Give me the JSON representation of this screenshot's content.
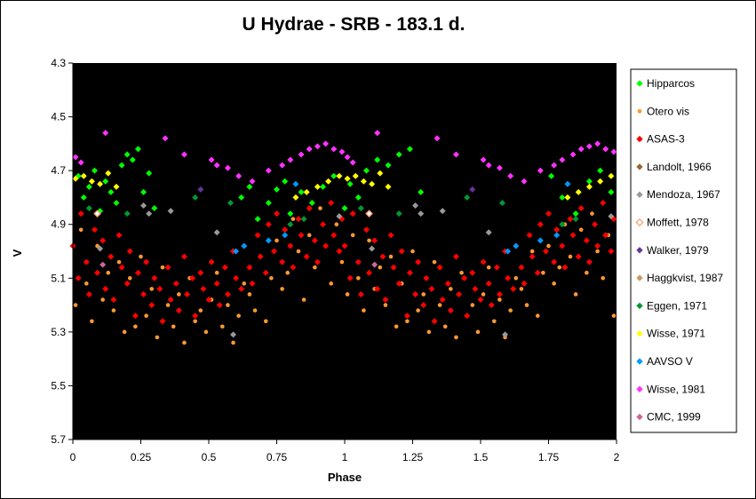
{
  "chart_data": {
    "type": "scatter",
    "title": "U Hydrae - SRB - 183.1 d.",
    "xlabel": "Phase",
    "ylabel": "V",
    "xlim": [
      0,
      2
    ],
    "ylim": [
      4.3,
      5.7
    ],
    "y_inverted": true,
    "background": "#000000",
    "grid": false,
    "legend_position": "right",
    "x_ticks": [
      "0",
      "0.25",
      "0.5",
      "0.75",
      "1",
      "1.25",
      "1.5",
      "1.75",
      "2"
    ],
    "y_ticks": [
      "4.3",
      "4.5",
      "4.7",
      "4.9",
      "5.1",
      "5.3",
      "5.5",
      "5.7"
    ],
    "series": [
      {
        "name": "Hipparcos",
        "color": "#00ff00",
        "marker": "diamond",
        "x": [
          0.02,
          0.04,
          0.06,
          0.08,
          0.1,
          0.12,
          0.14,
          0.16,
          0.18,
          0.2,
          0.22,
          0.24,
          0.26,
          0.28,
          0.3,
          0.62,
          0.65,
          0.68,
          0.72,
          0.75,
          0.78,
          0.8,
          0.84,
          0.88,
          0.92,
          0.96,
          1.0,
          1.02,
          1.05,
          1.08,
          1.12,
          1.16,
          1.2,
          1.24,
          1.28,
          1.76,
          1.8,
          1.85,
          1.9,
          1.94,
          1.98
        ],
        "y": [
          4.72,
          4.8,
          4.76,
          4.7,
          4.85,
          4.74,
          4.78,
          4.82,
          4.68,
          4.64,
          4.66,
          4.62,
          4.78,
          4.71,
          4.84,
          4.8,
          4.76,
          4.88,
          4.82,
          4.77,
          4.74,
          4.86,
          4.78,
          4.82,
          4.76,
          4.72,
          4.84,
          4.75,
          4.8,
          4.7,
          4.66,
          4.68,
          4.64,
          4.62,
          4.78,
          4.72,
          4.8,
          4.86,
          4.74,
          4.7,
          4.78
        ]
      },
      {
        "name": "Otero vis",
        "color": "#ff9933",
        "marker": "circle",
        "x": [
          0.01,
          0.03,
          0.05,
          0.07,
          0.09,
          0.11,
          0.13,
          0.15,
          0.17,
          0.19,
          0.21,
          0.23,
          0.25,
          0.27,
          0.29,
          0.31,
          0.33,
          0.35,
          0.37,
          0.39,
          0.41,
          0.43,
          0.45,
          0.47,
          0.49,
          0.51,
          0.53,
          0.55,
          0.57,
          0.59,
          0.61,
          0.63,
          0.65,
          0.67,
          0.69,
          0.71,
          0.73,
          0.75,
          0.77,
          0.79,
          0.81,
          0.83,
          0.85,
          0.87,
          0.89,
          0.91,
          0.93,
          0.95,
          0.97,
          0.99,
          1.01,
          1.03,
          1.05,
          1.07,
          1.09,
          1.11,
          1.13,
          1.15,
          1.17,
          1.19,
          1.21,
          1.23,
          1.25,
          1.27,
          1.29,
          1.31,
          1.33,
          1.35,
          1.37,
          1.39,
          1.41,
          1.43,
          1.45,
          1.47,
          1.49,
          1.51,
          1.53,
          1.55,
          1.57,
          1.59,
          1.61,
          1.63,
          1.65,
          1.67,
          1.69,
          1.71,
          1.73,
          1.75,
          1.77,
          1.79,
          1.81,
          1.83,
          1.85,
          1.87,
          1.89,
          1.91,
          1.93,
          1.95,
          1.97,
          1.99
        ],
        "y": [
          5.2,
          4.92,
          5.12,
          5.26,
          4.98,
          5.18,
          5.08,
          5.22,
          5.04,
          5.3,
          5.1,
          5.28,
          5.02,
          5.24,
          5.14,
          5.32,
          5.06,
          5.2,
          5.28,
          5.16,
          5.34,
          5.1,
          5.26,
          5.22,
          5.3,
          5.18,
          5.08,
          5.28,
          5.2,
          5.34,
          5.24,
          5.12,
          5.16,
          5.22,
          5.02,
          5.26,
          5.1,
          4.96,
          5.14,
          5.08,
          4.88,
          5.0,
          5.18,
          4.94,
          5.06,
          4.84,
          4.98,
          5.12,
          4.9,
          5.04,
          5.16,
          4.94,
          5.1,
          5.22,
          4.96,
          5.14,
          5.06,
          5.2,
          5.02,
          5.28,
          5.12,
          5.26,
          5.0,
          5.22,
          5.16,
          5.3,
          5.04,
          5.2,
          5.28,
          5.14,
          5.32,
          5.08,
          5.24,
          5.2,
          5.3,
          5.16,
          5.06,
          5.26,
          5.18,
          5.32,
          5.22,
          5.1,
          5.14,
          5.2,
          5.0,
          5.24,
          5.08,
          4.98,
          5.12,
          5.06,
          4.9,
          5.02,
          5.16,
          4.92,
          5.08,
          4.86,
          5.0,
          5.1,
          4.94,
          5.24
        ]
      },
      {
        "name": "ASAS-3",
        "color": "#ff0000",
        "marker": "diamond",
        "x": [
          0.0,
          0.02,
          0.03,
          0.05,
          0.06,
          0.08,
          0.09,
          0.11,
          0.12,
          0.14,
          0.15,
          0.17,
          0.18,
          0.2,
          0.21,
          0.23,
          0.24,
          0.26,
          0.27,
          0.29,
          0.3,
          0.32,
          0.33,
          0.35,
          0.36,
          0.38,
          0.39,
          0.41,
          0.42,
          0.44,
          0.45,
          0.47,
          0.48,
          0.5,
          0.51,
          0.53,
          0.54,
          0.56,
          0.57,
          0.59,
          0.6,
          0.62,
          0.63,
          0.65,
          0.66,
          0.68,
          0.69,
          0.71,
          0.72,
          0.74,
          0.75,
          0.77,
          0.78,
          0.8,
          0.81,
          0.83,
          0.84,
          0.86,
          0.87,
          0.89,
          0.9,
          0.92,
          0.93,
          0.95,
          0.96,
          0.98,
          0.99,
          1.0,
          1.02,
          1.03,
          1.05,
          1.06,
          1.08,
          1.09,
          1.11,
          1.12,
          1.14,
          1.15,
          1.17,
          1.18,
          1.2,
          1.21,
          1.23,
          1.24,
          1.26,
          1.27,
          1.29,
          1.3,
          1.32,
          1.33,
          1.35,
          1.36,
          1.38,
          1.39,
          1.41,
          1.42,
          1.44,
          1.45,
          1.47,
          1.48,
          1.5,
          1.51,
          1.53,
          1.54,
          1.56,
          1.57,
          1.59,
          1.6,
          1.62,
          1.63,
          1.65,
          1.66,
          1.68,
          1.69,
          1.71,
          1.72,
          1.74,
          1.75,
          1.77,
          1.78,
          1.8,
          1.81,
          1.83,
          1.84,
          1.86,
          1.87,
          1.89,
          1.9,
          1.92,
          1.93,
          1.95,
          1.96,
          1.98,
          1.99
        ],
        "y": [
          4.98,
          5.1,
          4.86,
          5.04,
          5.16,
          4.92,
          5.08,
          4.96,
          5.14,
          5.02,
          5.18,
          4.94,
          5.06,
          5.12,
          5.0,
          5.24,
          5.08,
          5.16,
          5.04,
          5.2,
          5.1,
          5.14,
          5.26,
          5.06,
          5.18,
          5.12,
          5.22,
          5.02,
          5.16,
          5.1,
          5.24,
          5.08,
          5.14,
          5.18,
          5.04,
          5.12,
          5.2,
          5.06,
          5.16,
          5.0,
          5.1,
          5.14,
          4.98,
          5.06,
          5.12,
          4.94,
          5.02,
          5.08,
          4.9,
          5.0,
          4.86,
          5.04,
          4.92,
          4.98,
          5.06,
          4.88,
          4.94,
          5.02,
          4.84,
          4.96,
          5.04,
          4.9,
          4.98,
          4.82,
          4.94,
          5.0,
          4.88,
          4.98,
          5.1,
          4.86,
          5.04,
          5.16,
          4.92,
          5.08,
          4.96,
          5.14,
          5.02,
          5.18,
          4.94,
          5.06,
          5.12,
          5.0,
          5.24,
          5.08,
          5.16,
          5.04,
          5.2,
          5.1,
          5.14,
          5.26,
          5.06,
          5.18,
          5.12,
          5.22,
          5.02,
          5.16,
          5.1,
          5.24,
          5.08,
          5.14,
          5.18,
          5.04,
          5.12,
          5.2,
          5.06,
          5.16,
          5.0,
          5.1,
          5.14,
          4.98,
          5.06,
          5.12,
          4.94,
          5.02,
          5.08,
          4.9,
          5.0,
          4.86,
          5.04,
          4.92,
          4.98,
          5.06,
          4.88,
          4.94,
          5.02,
          4.84,
          4.96,
          5.04,
          4.9,
          4.98,
          4.82,
          4.94,
          5.0,
          4.88
        ]
      },
      {
        "name": "Landolt, 1966",
        "color": "#996633",
        "marker": "diamond",
        "x": [],
        "y": []
      },
      {
        "name": "Mendoza, 1967",
        "color": "#999999",
        "marker": "diamond",
        "x": [
          0.1,
          0.26,
          0.28,
          0.36,
          0.53,
          0.59,
          0.98,
          1.1,
          1.26,
          1.28,
          1.36,
          1.53,
          1.59,
          1.98
        ],
        "y": [
          4.99,
          4.83,
          4.86,
          4.85,
          4.93,
          5.31,
          4.87,
          4.99,
          4.83,
          4.86,
          4.85,
          4.93,
          5.31,
          4.87
        ]
      },
      {
        "name": "Moffett, 1978",
        "color": "#ff9966",
        "marker": "diamond-open",
        "x": [
          0.09,
          1.09
        ],
        "y": [
          4.86,
          4.86
        ]
      },
      {
        "name": "Walker,  1979",
        "color": "#663399",
        "marker": "diamond",
        "x": [
          0.47,
          1.47
        ],
        "y": [
          4.77,
          4.77
        ]
      },
      {
        "name": "Haggkvist, 1987",
        "color": "#cc9966",
        "marker": "diamond",
        "x": [],
        "y": []
      },
      {
        "name": "Eggen, 1971",
        "color": "#009933",
        "marker": "diamond",
        "x": [
          0.06,
          0.2,
          0.45,
          0.58,
          0.8,
          0.85,
          1.06,
          1.2,
          1.45,
          1.58,
          1.8,
          1.85
        ],
        "y": [
          4.84,
          4.86,
          4.8,
          4.82,
          4.9,
          4.88,
          4.84,
          4.86,
          4.8,
          4.82,
          4.9,
          4.88
        ]
      },
      {
        "name": "Wisse, 1971",
        "color": "#ffff00",
        "marker": "diamond",
        "x": [
          0.01,
          0.04,
          0.07,
          0.1,
          0.13,
          0.16,
          0.82,
          0.86,
          0.9,
          0.94,
          0.98,
          1.01,
          1.04,
          1.07,
          1.1,
          1.13,
          1.16,
          1.82,
          1.86,
          1.9,
          1.94,
          1.98
        ],
        "y": [
          4.73,
          4.72,
          4.74,
          4.75,
          4.71,
          4.76,
          4.8,
          4.78,
          4.76,
          4.74,
          4.72,
          4.73,
          4.72,
          4.74,
          4.75,
          4.71,
          4.76,
          4.8,
          4.78,
          4.76,
          4.74,
          4.72
        ]
      },
      {
        "name": "AAVSO V",
        "color": "#0099ff",
        "marker": "diamond",
        "x": [
          0.6,
          0.63,
          0.72,
          0.78,
          0.82,
          1.6,
          1.63,
          1.72,
          1.78,
          1.82
        ],
        "y": [
          5.0,
          4.98,
          4.96,
          4.94,
          4.75,
          5.0,
          4.98,
          4.96,
          4.94,
          4.75
        ]
      },
      {
        "name": "Wisse, 1981",
        "color": "#ff33ff",
        "marker": "diamond",
        "x": [
          0.01,
          0.03,
          0.12,
          0.34,
          0.41,
          0.51,
          0.53,
          0.57,
          0.61,
          0.66,
          0.72,
          0.77,
          0.8,
          0.84,
          0.87,
          0.9,
          0.93,
          0.96,
          0.99,
          1.01,
          1.03,
          1.12,
          1.34,
          1.41,
          1.51,
          1.53,
          1.57,
          1.61,
          1.66,
          1.72,
          1.77,
          1.8,
          1.84,
          1.87,
          1.9,
          1.93,
          1.96,
          1.99
        ],
        "y": [
          4.65,
          4.67,
          4.56,
          4.58,
          4.64,
          4.66,
          4.68,
          4.69,
          4.72,
          4.74,
          4.7,
          4.68,
          4.66,
          4.64,
          4.62,
          4.61,
          4.6,
          4.62,
          4.63,
          4.65,
          4.67,
          4.56,
          4.58,
          4.64,
          4.66,
          4.68,
          4.69,
          4.72,
          4.74,
          4.7,
          4.68,
          4.66,
          4.64,
          4.62,
          4.61,
          4.6,
          4.62,
          4.63
        ]
      },
      {
        "name": "CMC, 1999",
        "color": "#cc6699",
        "marker": "diamond",
        "x": [
          0.11,
          1.11
        ],
        "y": [
          5.05,
          5.05
        ]
      }
    ]
  }
}
